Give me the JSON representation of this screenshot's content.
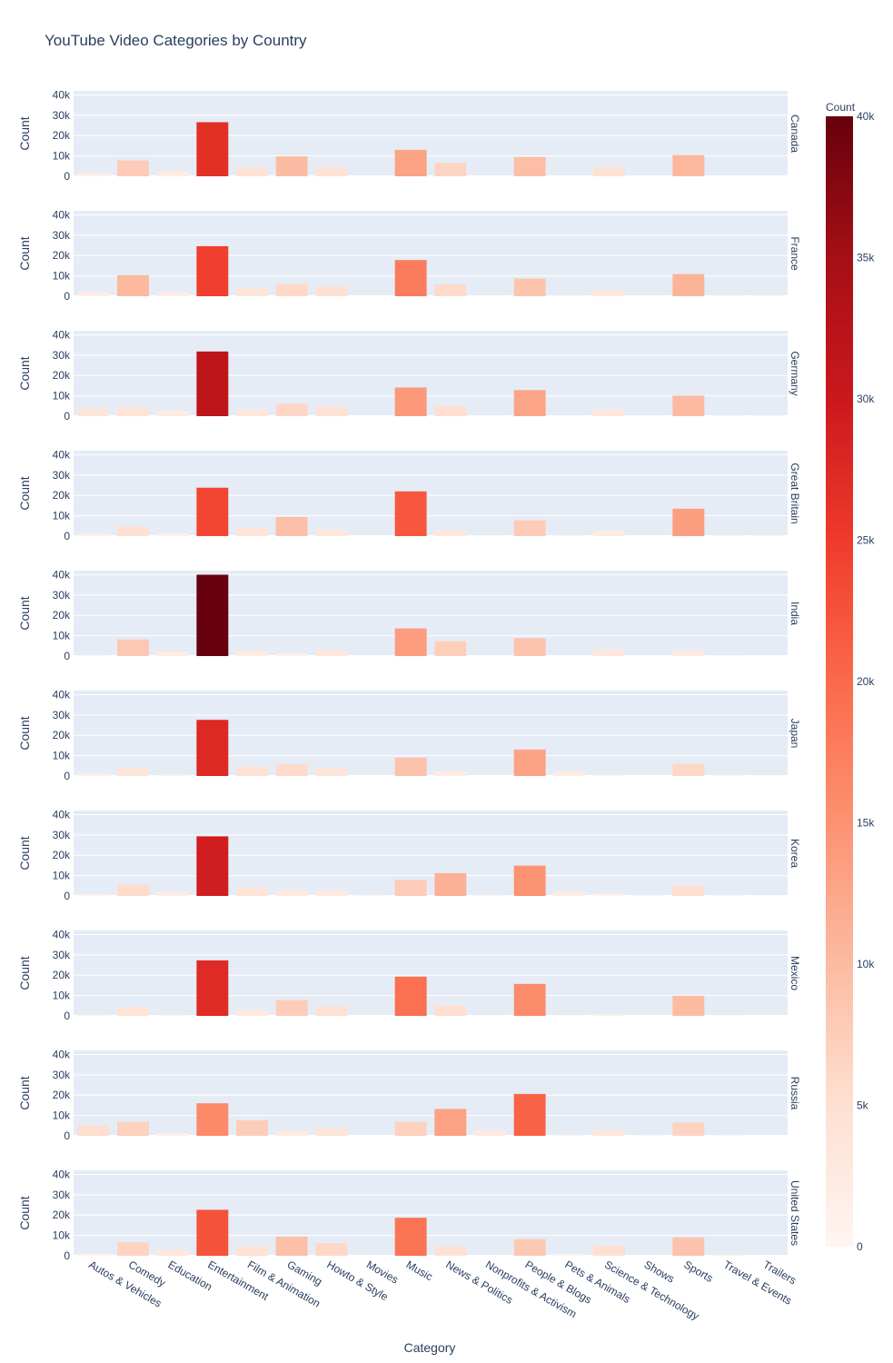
{
  "chart_data": {
    "type": "bar",
    "title": "YouTube Video Categories by Country",
    "xlabel": "Category",
    "ylabel": "Count",
    "ylim": [
      0,
      42000
    ],
    "yticks": [
      "0",
      "10k",
      "20k",
      "30k",
      "40k"
    ],
    "yticks_values": [
      0,
      10000,
      20000,
      30000,
      40000
    ],
    "grid": true,
    "categories": [
      "Autos & Vehicles",
      "Comedy",
      "Education",
      "Entertainment",
      "Film & Animation",
      "Gaming",
      "Howto & Style",
      "Movies",
      "Music",
      "News & Politics",
      "Nonprofits & Activism",
      "People & Blogs",
      "Pets & Animals",
      "Science & Technology",
      "Shows",
      "Sports",
      "Travel & Events",
      "Trailers"
    ],
    "facets": [
      {
        "name": "Canada",
        "values": [
          1500,
          7800,
          2400,
          26600,
          4300,
          9800,
          4500,
          0,
          13000,
          6600,
          0,
          9500,
          0,
          4500,
          0,
          10400,
          0,
          0
        ]
      },
      {
        "name": "France",
        "values": [
          2000,
          10300,
          2000,
          24600,
          3800,
          6000,
          4700,
          0,
          17800,
          5800,
          200,
          8700,
          300,
          3000,
          200,
          10900,
          400,
          300
        ]
      },
      {
        "name": "Germany",
        "values": [
          3700,
          4300,
          2500,
          31800,
          3400,
          6200,
          4600,
          0,
          14100,
          5100,
          200,
          12800,
          200,
          3500,
          200,
          10100,
          300,
          300
        ]
      },
      {
        "name": "Great Britain",
        "values": [
          1100,
          4800,
          1200,
          23800,
          4000,
          9400,
          3200,
          0,
          22000,
          3000,
          200,
          7800,
          400,
          2500,
          0,
          13500,
          500,
          400
        ]
      },
      {
        "name": "India",
        "values": [
          300,
          8200,
          2200,
          40000,
          2500,
          1200,
          3000,
          0,
          13600,
          7300,
          0,
          8800,
          0,
          3400,
          0,
          2700,
          200,
          0
        ]
      },
      {
        "name": "Japan",
        "values": [
          1100,
          3900,
          600,
          27600,
          4500,
          5700,
          3800,
          0,
          9000,
          2400,
          0,
          13000,
          2300,
          400,
          0,
          6100,
          300,
          200
        ]
      },
      {
        "name": "Korea",
        "values": [
          800,
          5600,
          1800,
          29300,
          4100,
          2800,
          2700,
          500,
          7800,
          11200,
          500,
          14900,
          2000,
          1000,
          400,
          5100,
          400,
          200
        ]
      },
      {
        "name": "Mexico",
        "values": [
          500,
          4300,
          500,
          27300,
          2900,
          7700,
          4700,
          0,
          19300,
          5200,
          200,
          15700,
          300,
          700,
          0,
          9900,
          300,
          0
        ]
      },
      {
        "name": "Russia",
        "values": [
          5200,
          6900,
          1200,
          16000,
          7600,
          2400,
          3700,
          0,
          6900,
          13200,
          2600,
          20600,
          500,
          3000,
          300,
          6600,
          300,
          0
        ]
      },
      {
        "name": "United States",
        "values": [
          1000,
          6600,
          3000,
          22600,
          4600,
          9400,
          6200,
          0,
          18700,
          4700,
          0,
          8200,
          800,
          5000,
          0,
          9000,
          500,
          0
        ]
      }
    ],
    "colorbar": {
      "title": "Count",
      "range": [
        0,
        40000
      ],
      "ticks": [
        "0",
        "5k",
        "10k",
        "15k",
        "20k",
        "25k",
        "30k",
        "35k",
        "40k"
      ],
      "ticks_values": [
        0,
        5000,
        10000,
        15000,
        20000,
        25000,
        30000,
        35000,
        40000
      ],
      "colorscale": [
        "#fff5f0",
        "#fee0d2",
        "#fcbba1",
        "#fc9272",
        "#fb6a4a",
        "#ef3b2c",
        "#cb181d",
        "#a50f15",
        "#67000d"
      ]
    },
    "plot_bg": "#e5ecf6",
    "gridline_color": "#ffffff",
    "text_color": "#2a3f5f"
  }
}
